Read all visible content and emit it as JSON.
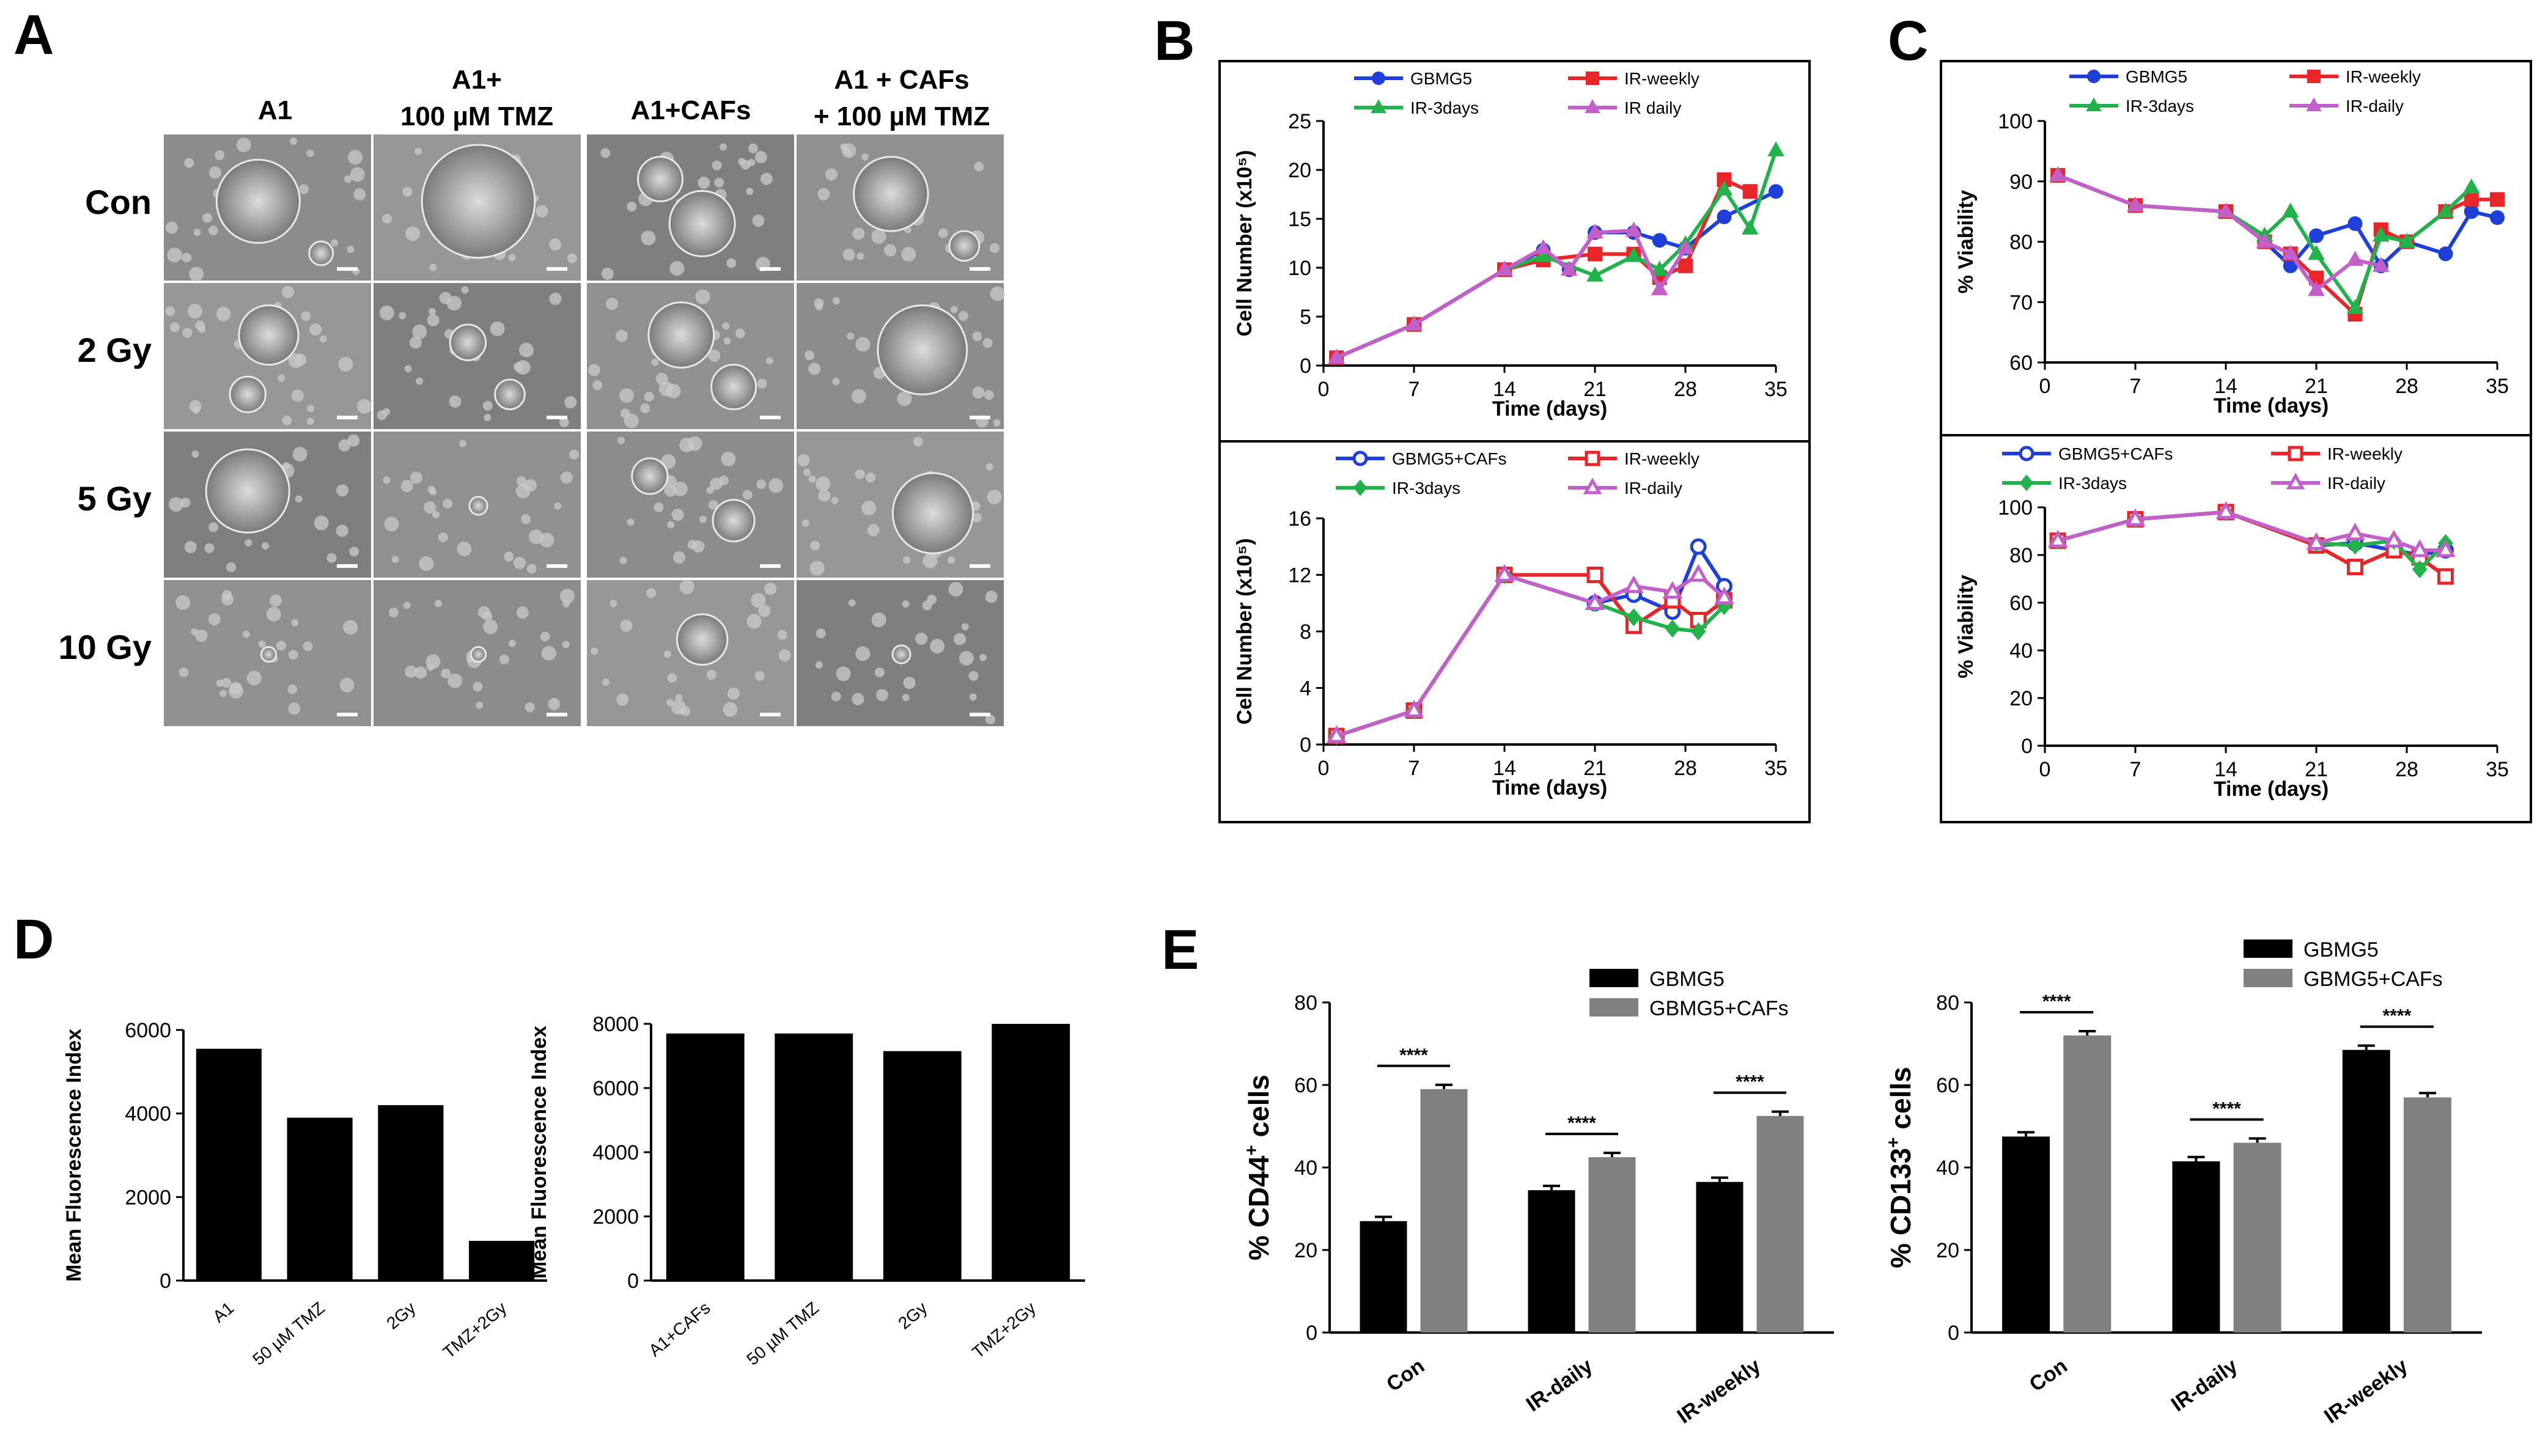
{
  "panel_letters": [
    "A",
    "B",
    "C",
    "D",
    "E"
  ],
  "panel_a": {
    "column_headers": [
      "A1",
      "A1+",
      "100 µM TMZ",
      "A1+CAFs",
      "A1 + CAFs",
      "+ 100 µM TMZ"
    ],
    "row_labels": [
      "Con",
      "2 Gy",
      "5 Gy",
      "10 Gy"
    ]
  },
  "chart_data": [
    {
      "id": "B-top",
      "type": "line",
      "xlabel": "Time (days)",
      "ylabel": "Cell Number (x10⁵)",
      "xlim": [
        0,
        35
      ],
      "ylim": [
        0,
        25
      ],
      "xticks": [
        "0",
        "7",
        "14",
        "21",
        "28",
        "35"
      ],
      "yticks": [
        "0",
        "5",
        "10",
        "15",
        "20",
        "25"
      ],
      "series": [
        {
          "name": "GBMG5",
          "color": "#1f3fd9",
          "marker": "circle",
          "x": [
            1,
            7,
            14,
            17,
            19,
            21,
            24,
            26,
            28,
            31,
            35
          ],
          "y": [
            0.8,
            4.2,
            9.8,
            11.8,
            9.8,
            13.6,
            13.6,
            12.8,
            12.0,
            15.2,
            17.8
          ]
        },
        {
          "name": "IR-weekly",
          "color": "#e8262a",
          "marker": "square",
          "x": [
            1,
            7,
            14,
            17,
            21,
            24,
            26,
            28,
            31,
            33
          ],
          "y": [
            0.8,
            4.2,
            9.8,
            10.8,
            11.4,
            11.4,
            9.0,
            10.2,
            19.0,
            17.8
          ]
        },
        {
          "name": "IR-3days",
          "color": "#22b24c",
          "marker": "triangle",
          "x": [
            1,
            7,
            14,
            17,
            21,
            24,
            26,
            28,
            31,
            33,
            35
          ],
          "y": [
            0.8,
            4.2,
            9.8,
            11.2,
            9.2,
            11.2,
            9.8,
            12.4,
            18.0,
            14.0,
            22.0
          ]
        },
        {
          "name": "IR daily",
          "color": "#c25fc9",
          "marker": "triangle",
          "x": [
            1,
            7,
            14,
            17,
            19,
            21,
            24,
            26,
            28
          ],
          "y": [
            0.8,
            4.2,
            9.8,
            12.0,
            9.8,
            13.6,
            13.8,
            7.8,
            12.0
          ]
        }
      ]
    },
    {
      "id": "B-bottom",
      "type": "line",
      "xlabel": "Time (days)",
      "ylabel": "Cell Number (x10⁵)",
      "xlim": [
        0,
        35
      ],
      "ylim": [
        0,
        16
      ],
      "xticks": [
        "0",
        "7",
        "14",
        "21",
        "28",
        "35"
      ],
      "yticks": [
        "0",
        "4",
        "8",
        "12",
        "16"
      ],
      "series": [
        {
          "name": "GBMG5+CAFs",
          "color": "#1f3fd9",
          "marker": "circle-open",
          "x": [
            1,
            7,
            14,
            21,
            24,
            27,
            29,
            31
          ],
          "y": [
            0.6,
            2.4,
            12.0,
            10.0,
            10.6,
            9.4,
            14.0,
            11.2
          ]
        },
        {
          "name": "IR-weekly",
          "color": "#e8262a",
          "marker": "square-open",
          "x": [
            1,
            7,
            14,
            21,
            24,
            27,
            29,
            31
          ],
          "y": [
            0.6,
            2.4,
            12.0,
            12.0,
            8.4,
            10.2,
            8.8,
            10.2
          ]
        },
        {
          "name": "IR-3days",
          "color": "#22b24c",
          "marker": "diamond",
          "x": [
            1,
            7,
            14,
            21,
            24,
            27,
            29,
            31
          ],
          "y": [
            0.6,
            2.4,
            12.0,
            10.0,
            9.0,
            8.2,
            8.0,
            9.8
          ]
        },
        {
          "name": "IR-daily",
          "color": "#c25fc9",
          "marker": "triangle-open",
          "x": [
            1,
            7,
            14,
            21,
            24,
            27,
            29,
            31
          ],
          "y": [
            0.6,
            2.4,
            12.0,
            10.0,
            11.2,
            10.8,
            12.0,
            10.4
          ]
        }
      ]
    },
    {
      "id": "C-top",
      "type": "line",
      "xlabel": "Time (days)",
      "ylabel": "% Viability",
      "xlim": [
        0,
        35
      ],
      "ylim": [
        60,
        100
      ],
      "xticks": [
        "0",
        "7",
        "14",
        "21",
        "28",
        "35"
      ],
      "yticks": [
        "60",
        "70",
        "80",
        "90",
        "100"
      ],
      "series": [
        {
          "name": "GBMG5",
          "color": "#1f3fd9",
          "marker": "circle",
          "x": [
            1,
            7,
            14,
            17,
            19,
            21,
            24,
            26,
            28,
            31,
            33,
            35
          ],
          "y": [
            91,
            86,
            85,
            80,
            76,
            81,
            83,
            76,
            80,
            78,
            85,
            84
          ]
        },
        {
          "name": "IR-weekly",
          "color": "#e8262a",
          "marker": "square",
          "x": [
            1,
            7,
            14,
            17,
            19,
            21,
            24,
            26,
            28,
            31,
            33,
            35
          ],
          "y": [
            91,
            86,
            85,
            80,
            78,
            74,
            68,
            82,
            80,
            85,
            87,
            87
          ]
        },
        {
          "name": "IR-3days",
          "color": "#22b24c",
          "marker": "triangle",
          "x": [
            1,
            7,
            14,
            17,
            19,
            21,
            24,
            26,
            28,
            31,
            33
          ],
          "y": [
            91,
            86,
            85,
            81,
            85,
            78,
            69,
            81,
            80,
            85,
            89
          ]
        },
        {
          "name": "IR-daily",
          "color": "#c25fc9",
          "marker": "triangle",
          "x": [
            1,
            7,
            14,
            17,
            19,
            21,
            24,
            26
          ],
          "y": [
            91,
            86,
            85,
            80,
            78,
            72,
            77,
            76
          ]
        }
      ]
    },
    {
      "id": "C-bottom",
      "type": "line",
      "xlabel": "Time (days)",
      "ylabel": "% Viability",
      "xlim": [
        0,
        35
      ],
      "ylim": [
        0,
        100
      ],
      "xticks": [
        "0",
        "7",
        "14",
        "21",
        "28",
        "35"
      ],
      "yticks": [
        "0",
        "20",
        "40",
        "60",
        "80",
        "100"
      ],
      "series": [
        {
          "name": "GBMG5+CAFs",
          "color": "#1f3fd9",
          "marker": "circle-open",
          "x": [
            1,
            7,
            14,
            21,
            24,
            27,
            29,
            31
          ],
          "y": [
            86,
            95,
            98,
            84,
            85,
            82,
            80,
            82
          ]
        },
        {
          "name": "IR-weekly",
          "color": "#e8262a",
          "marker": "square-open",
          "x": [
            1,
            7,
            14,
            21,
            24,
            27,
            29,
            31
          ],
          "y": [
            86,
            95,
            98,
            84,
            75,
            82,
            79,
            71
          ]
        },
        {
          "name": "IR-3days",
          "color": "#22b24c",
          "marker": "diamond",
          "x": [
            1,
            7,
            14,
            21,
            24,
            27,
            29,
            31
          ],
          "y": [
            86,
            95,
            98,
            85,
            84,
            86,
            74,
            85
          ]
        },
        {
          "name": "IR-daily",
          "color": "#c25fc9",
          "marker": "triangle-open",
          "x": [
            1,
            7,
            14,
            21,
            24,
            27,
            29,
            31
          ],
          "y": [
            86,
            95,
            98,
            85,
            89,
            86,
            82,
            82
          ]
        }
      ]
    },
    {
      "id": "D-left",
      "type": "bar",
      "ylabel": "Mean Fluorescence Index",
      "ylim": [
        0,
        6000
      ],
      "yticks": [
        "0",
        "2000",
        "4000",
        "6000"
      ],
      "categories": [
        "A1",
        "50 µM TMZ",
        "2Gy",
        "TMZ+2Gy"
      ],
      "values": [
        5550,
        3900,
        4200,
        950
      ]
    },
    {
      "id": "D-right",
      "type": "bar",
      "ylabel": "Mean Fluorescence Index",
      "ylim": [
        0,
        8000
      ],
      "yticks": [
        "0",
        "2000",
        "4000",
        "6000",
        "8000"
      ],
      "categories": [
        "A1+CAFs",
        "50 µM TMZ",
        "2Gy",
        "TMZ+2Gy"
      ],
      "values": [
        7700,
        7700,
        7150,
        8000
      ]
    },
    {
      "id": "E-left",
      "type": "bar",
      "ylabel_prefix": "% CD44",
      "ylabel_sup": "+",
      "ylabel_suffix": " cells",
      "ylim": [
        0,
        80
      ],
      "yticks": [
        "0",
        "20",
        "40",
        "60",
        "80"
      ],
      "categories": [
        "Con",
        "IR-daily",
        "IR-weekly"
      ],
      "series": [
        {
          "name": "GBMG5",
          "color": "#000000",
          "values": [
            27,
            34.5,
            36.5
          ]
        },
        {
          "name": "GBMG5+CAFs",
          "color": "#808080",
          "values": [
            59,
            42.5,
            52.5
          ]
        }
      ],
      "significance": [
        "****",
        "****",
        "****"
      ]
    },
    {
      "id": "E-right",
      "type": "bar",
      "ylabel_prefix": "% CD133",
      "ylabel_sup": "+",
      "ylabel_suffix": " cells",
      "ylim": [
        0,
        80
      ],
      "yticks": [
        "0",
        "20",
        "40",
        "60",
        "80"
      ],
      "categories": [
        "Con",
        "IR-daily",
        "IR-weekly"
      ],
      "series": [
        {
          "name": "GBMG5",
          "color": "#000000",
          "values": [
            47.5,
            41.5,
            68.5
          ]
        },
        {
          "name": "GBMG5+CAFs",
          "color": "#808080",
          "values": [
            72,
            46,
            57
          ]
        }
      ],
      "significance": [
        "****",
        "****",
        "****"
      ]
    }
  ]
}
